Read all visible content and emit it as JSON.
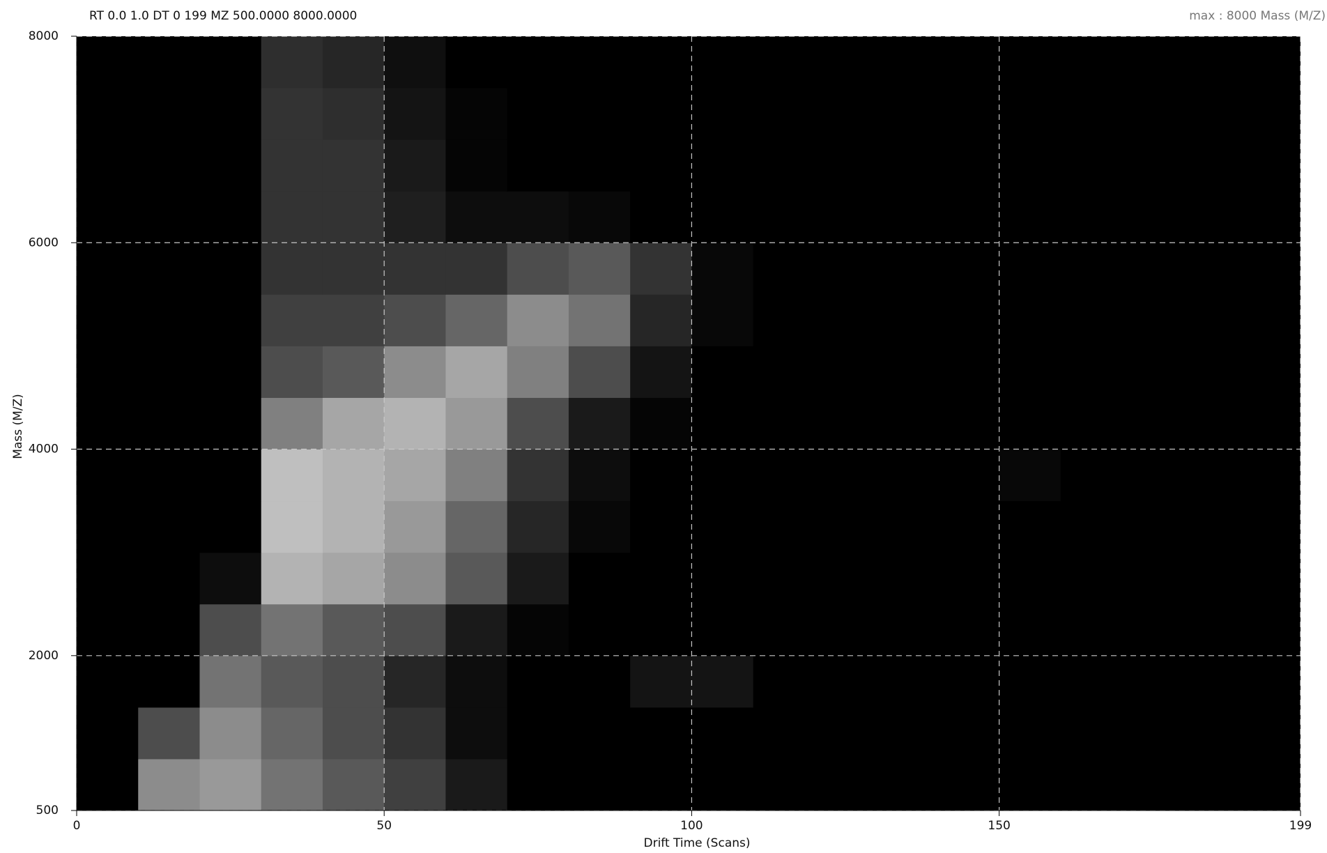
{
  "chart_data": {
    "type": "heatmap",
    "title": "RT 0.0 1.0 DT 0 199 MZ 500.0000 8000.0000",
    "subtitle": "max : 8000 Mass (M/Z)",
    "x_label": "Drift Time (Scans)",
    "y_label": "Mass (M/Z)",
    "x": [
      5,
      15,
      25,
      35,
      45,
      55,
      65,
      75,
      85,
      95,
      105,
      115,
      125,
      135,
      145,
      155,
      165,
      175,
      185,
      195
    ],
    "y": [
      750,
      1250,
      1750,
      2250,
      2750,
      3250,
      3750,
      4250,
      4750,
      5250,
      5750,
      6250,
      6750,
      7250,
      7750
    ],
    "z": [
      [
        0,
        0.55,
        0.6,
        0.45,
        0.35,
        0.25,
        0.1,
        0,
        0,
        0,
        0,
        0,
        0,
        0,
        0,
        0,
        0,
        0,
        0,
        0
      ],
      [
        0,
        0.3,
        0.55,
        0.4,
        0.3,
        0.2,
        0.05,
        0,
        0,
        0,
        0,
        0,
        0,
        0,
        0,
        0,
        0,
        0,
        0,
        0
      ],
      [
        0,
        0,
        0.45,
        0.35,
        0.3,
        0.15,
        0.05,
        0,
        0,
        0.08,
        0.08,
        0,
        0,
        0,
        0,
        0,
        0,
        0,
        0,
        0
      ],
      [
        0,
        0,
        0.3,
        0.45,
        0.35,
        0.3,
        0.1,
        0.02,
        0,
        0,
        0,
        0,
        0,
        0,
        0,
        0,
        0,
        0,
        0,
        0
      ],
      [
        0,
        0,
        0.05,
        0.7,
        0.65,
        0.55,
        0.35,
        0.1,
        0,
        0,
        0,
        0,
        0,
        0,
        0,
        0,
        0,
        0,
        0,
        0
      ],
      [
        0,
        0,
        0,
        0.75,
        0.7,
        0.6,
        0.4,
        0.15,
        0.03,
        0,
        0,
        0,
        0,
        0,
        0,
        0,
        0,
        0,
        0,
        0
      ],
      [
        0,
        0,
        0,
        0.75,
        0.7,
        0.65,
        0.5,
        0.2,
        0.05,
        0,
        0,
        0,
        0,
        0,
        0,
        0.03,
        0,
        0,
        0,
        0
      ],
      [
        0,
        0,
        0,
        0.5,
        0.65,
        0.7,
        0.6,
        0.3,
        0.1,
        0.02,
        0,
        0,
        0,
        0,
        0,
        0,
        0,
        0,
        0,
        0
      ],
      [
        0,
        0,
        0,
        0.3,
        0.35,
        0.55,
        0.65,
        0.5,
        0.3,
        0.08,
        0,
        0,
        0,
        0,
        0,
        0,
        0,
        0,
        0,
        0
      ],
      [
        0,
        0,
        0,
        0.25,
        0.25,
        0.3,
        0.4,
        0.55,
        0.45,
        0.15,
        0.03,
        0,
        0,
        0,
        0,
        0,
        0,
        0,
        0,
        0
      ],
      [
        0,
        0,
        0,
        0.2,
        0.2,
        0.2,
        0.2,
        0.3,
        0.35,
        0.2,
        0.03,
        0,
        0,
        0,
        0,
        0,
        0,
        0,
        0,
        0
      ],
      [
        0,
        0,
        0,
        0.2,
        0.2,
        0.12,
        0.05,
        0.05,
        0.03,
        0,
        0,
        0,
        0,
        0,
        0,
        0,
        0,
        0,
        0,
        0
      ],
      [
        0,
        0,
        0,
        0.2,
        0.2,
        0.1,
        0.02,
        0,
        0,
        0,
        0,
        0,
        0,
        0,
        0,
        0,
        0,
        0,
        0,
        0
      ],
      [
        0,
        0,
        0,
        0.2,
        0.18,
        0.08,
        0.02,
        0,
        0,
        0,
        0,
        0,
        0,
        0,
        0,
        0,
        0,
        0,
        0,
        0
      ],
      [
        0,
        0,
        0,
        0.18,
        0.15,
        0.06,
        0,
        0,
        0,
        0,
        0,
        0,
        0,
        0,
        0,
        0,
        0,
        0,
        0,
        0
      ]
    ],
    "xlim": [
      0,
      199
    ],
    "xticks": [
      0,
      50,
      100,
      150,
      199
    ],
    "ylim": [
      500,
      8000
    ],
    "yticks": [
      500,
      2000,
      4000,
      6000,
      8000
    ],
    "grid": true,
    "background": "#000000",
    "grid_color": "#c8c8c8"
  }
}
